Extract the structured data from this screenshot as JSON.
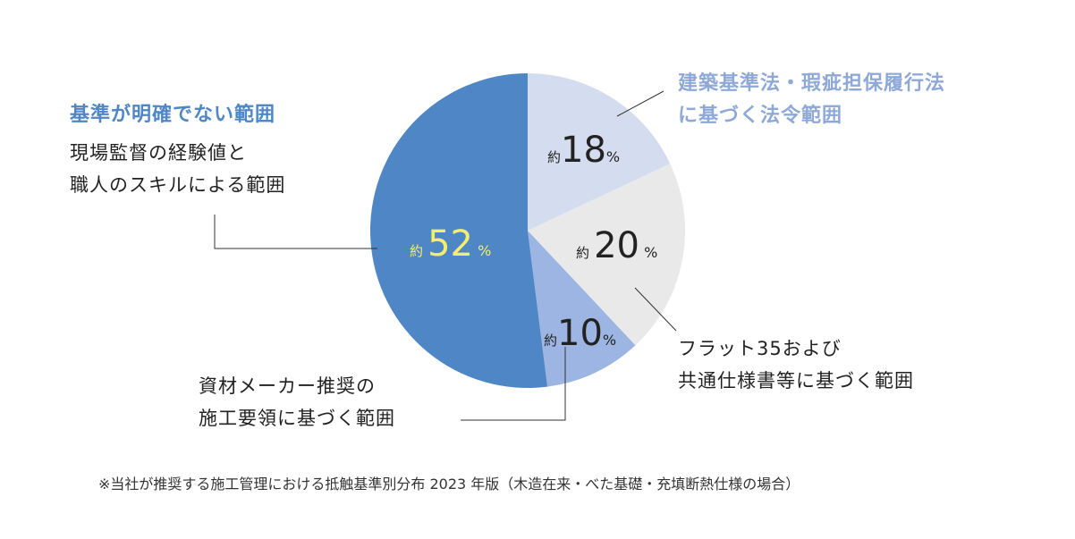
{
  "chart_data": {
    "type": "pie",
    "start": "top",
    "direction": "clockwise",
    "slices": [
      {
        "label": "建築基準法・瑕疵担保履行法に基づく法令範囲",
        "label_lines": [
          "建築基準法・瑕疵担保履行法",
          "に基づく法令範囲"
        ],
        "value": 18,
        "prefix": "約",
        "unit": "%",
        "color": "#d3ddef"
      },
      {
        "label": "フラット35および共通仕様書等に基づく範囲",
        "label_lines": [
          "フラット35および",
          "共通仕様書等に基づく範囲"
        ],
        "value": 20,
        "prefix": "約",
        "unit": "%",
        "color": "#e9e9e9"
      },
      {
        "label": "資材メーカー推奨の施工要領に基づく範囲",
        "label_lines": [
          "資材メーカー推奨の",
          "施工要領に基づく範囲"
        ],
        "value": 10,
        "prefix": "約",
        "unit": "%",
        "color": "#9db5e2"
      },
      {
        "title": "基準が明確でない範囲",
        "label_lines": [
          "現場監督の経験値と",
          "職人のスキルによる範囲"
        ],
        "value": 52,
        "prefix": "約",
        "unit": "%",
        "color": "#4f86c6",
        "value_color": "#f4ef6a"
      }
    ],
    "footnote": "※当社が推奨する施工管理における抵触基準別分布 2023 年版（木造在来・べた基礎・充填断熱仕様の場合）"
  }
}
